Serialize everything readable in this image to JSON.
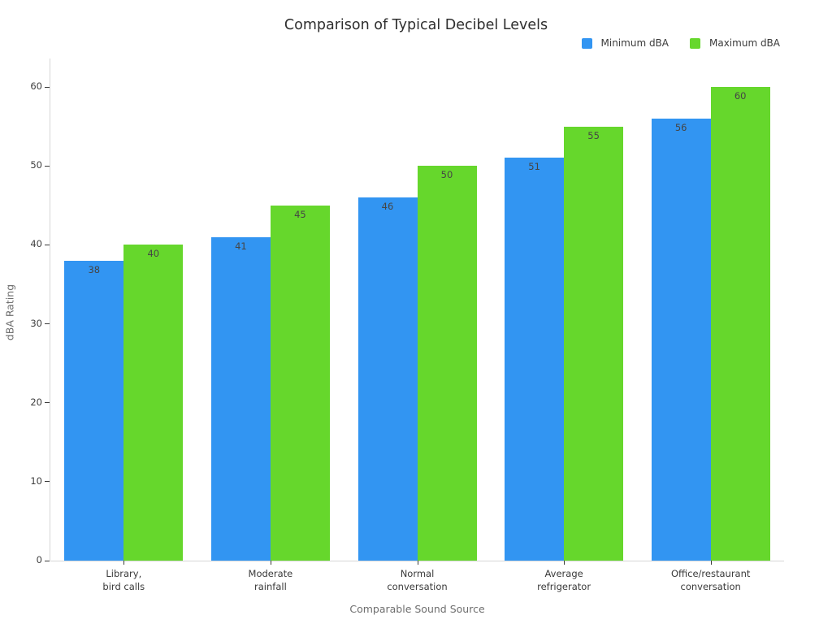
{
  "chart_data": {
    "type": "bar",
    "title": "Comparison of Typical Decibel Levels",
    "xlabel": "Comparable Sound Source",
    "ylabel": "dBA Rating",
    "categories": [
      "Library,\nbird calls",
      "Moderate\nrainfall",
      "Normal\nconversation",
      "Average\nrefrigerator",
      "Office/restaurant\nconversation"
    ],
    "series": [
      {
        "name": "Minimum dBA",
        "color": "#3295f2",
        "values": [
          38,
          41,
          46,
          51,
          56
        ]
      },
      {
        "name": "Maximum dBA",
        "color": "#66d72c",
        "values": [
          40,
          45,
          50,
          55,
          60
        ]
      }
    ],
    "yticks": [
      0,
      10,
      20,
      30,
      40,
      50,
      60
    ],
    "ylim": [
      0,
      63
    ],
    "grid": false,
    "legend_position": "top-right",
    "bar_value_labels": true,
    "axis_line_color": "#d6d6d6",
    "tick_mark_color": "#3a3a3a"
  }
}
